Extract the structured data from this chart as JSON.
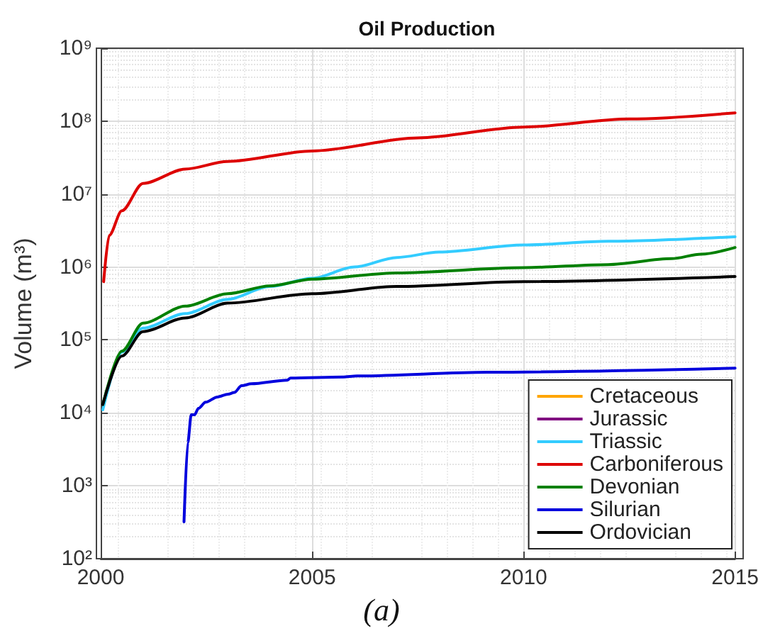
{
  "chart_data": {
    "type": "line",
    "title": "Oil Production",
    "ylabel": "Volume (m³)",
    "annotations": [
      "(a)"
    ],
    "xlim": [
      2000,
      2015
    ],
    "xticks": [
      2000,
      2005,
      2010,
      2015
    ],
    "ylim": [
      100,
      1000000000
    ],
    "yticks": [
      {
        "value": 100,
        "label": "10²"
      },
      {
        "value": 1000,
        "label": "10³"
      },
      {
        "value": 10000,
        "label": "10⁴"
      },
      {
        "value": 100000,
        "label": "10⁵"
      },
      {
        "value": 1000000,
        "label": "10⁶"
      },
      {
        "value": 10000000,
        "label": "10⁷"
      },
      {
        "value": 100000000,
        "label": "10⁸"
      },
      {
        "value": 1000000000,
        "label": "10⁹"
      }
    ],
    "log": "y",
    "grid": true,
    "legend": "bottom right",
    "marker": "none",
    "line_style": "solid",
    "series": [
      {
        "name": "Cretaceous",
        "color": "#ffa500"
      },
      {
        "name": "Jurassic",
        "color": "#800080"
      },
      {
        "name": "Triassic",
        "color": "#33ccff",
        "x": [
          2000.05,
          2000.5,
          2001,
          2002,
          2003,
          2004,
          2005,
          2006,
          2007,
          2008,
          2010,
          2012,
          2015
        ],
        "values": [
          11000,
          68000,
          145000,
          230000,
          360000,
          540000,
          700000,
          1000000,
          1350000,
          1600000,
          2000000,
          2250000,
          2600000
        ]
      },
      {
        "name": "Carboniferous",
        "color": "#dd0000",
        "x": [
          2000.07,
          2000.2,
          2000.5,
          2001,
          2002,
          2003,
          2005,
          2007.5,
          2010,
          2012.5,
          2015
        ],
        "values": [
          630000,
          2700000,
          5900000,
          14000000,
          22000000,
          28000000,
          39000000,
          59000000,
          83000000,
          107000000,
          130000000
        ]
      },
      {
        "name": "Devonian",
        "color": "#008000",
        "x": [
          2000.05,
          2000.5,
          2001,
          2002,
          2003,
          2004,
          2005,
          2007,
          2010,
          2012,
          2013.5,
          2014.2,
          2015
        ],
        "values": [
          13000,
          70000,
          170000,
          290000,
          430000,
          550000,
          680000,
          830000,
          980000,
          1080000,
          1300000,
          1500000,
          1850000
        ]
      },
      {
        "name": "Silurian",
        "color": "#0000dd",
        "x": [
          2001.97,
          2002.06,
          2002.14,
          2002.22,
          2002.31,
          2002.48,
          2002.76,
          2003.01,
          2003.16,
          2003.33,
          2003.56,
          2004.41,
          2004.49,
          2005.72,
          2006.06,
          2009.14,
          2015
        ],
        "values": [
          320,
          3900,
          9400,
          9400,
          11500,
          14000,
          16500,
          18000,
          19000,
          23500,
          25000,
          28000,
          30000,
          31000,
          32000,
          36000,
          41000
        ]
      },
      {
        "name": "Ordovician",
        "color": "#000000",
        "x": [
          2000.05,
          2000.5,
          2001,
          2002,
          2003,
          2005,
          2007,
          2010,
          2015
        ],
        "values": [
          13000,
          60000,
          130000,
          200000,
          320000,
          430000,
          540000,
          630000,
          740000
        ]
      }
    ]
  }
}
